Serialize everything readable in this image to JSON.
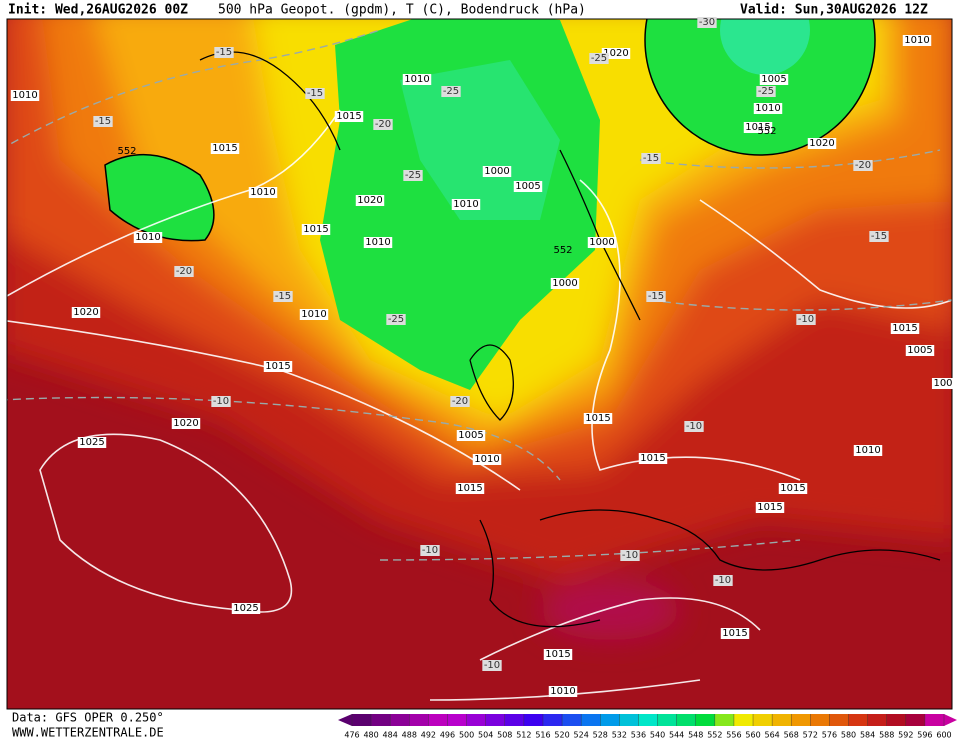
{
  "header": {
    "init": "Init: Wed,26AUG2026 00Z",
    "title": "500 hPa Geopot. (gpdm), T (C), Bodendruck (hPa)",
    "valid": "Valid: Sun,30AUG2026 12Z"
  },
  "footer": {
    "source": "Data: GFS OPER 0.250°",
    "website": "WWW.WETTERZENTRALE.DE"
  },
  "pressure_labels": [
    "1010",
    "1015",
    "1010",
    "1010",
    "1020",
    "1015",
    "1020",
    "1025",
    "1010",
    "1015",
    "1020",
    "1010",
    "1015",
    "1010",
    "1010",
    "1000",
    "1005",
    "1000",
    "1000",
    "1005",
    "1010",
    "1015",
    "1015",
    "1015",
    "1015",
    "1015",
    "1015",
    "1015",
    "1010",
    "1025",
    "1020",
    "1005",
    "1010",
    "1015",
    "1020",
    "1010",
    "1015",
    "1005",
    "100",
    "1010"
  ],
  "temperature_labels": [
    "-15",
    "-15",
    "-15",
    "-20",
    "-25",
    "-25",
    "-20",
    "-15",
    "-25",
    "-20",
    "-10",
    "-15",
    "-15",
    "-20",
    "-15",
    "-10",
    "-10",
    "-10",
    "-10",
    "-10",
    "-10",
    "-25",
    "-30",
    "-25"
  ],
  "geopotential_labels": [
    "552",
    "552",
    "552"
  ],
  "colorbar": {
    "ticks": [
      476,
      480,
      484,
      488,
      492,
      496,
      500,
      504,
      508,
      512,
      516,
      520,
      524,
      528,
      532,
      536,
      540,
      544,
      548,
      552,
      556,
      560,
      564,
      568,
      572,
      576,
      580,
      584,
      588,
      592,
      596,
      600
    ]
  }
}
